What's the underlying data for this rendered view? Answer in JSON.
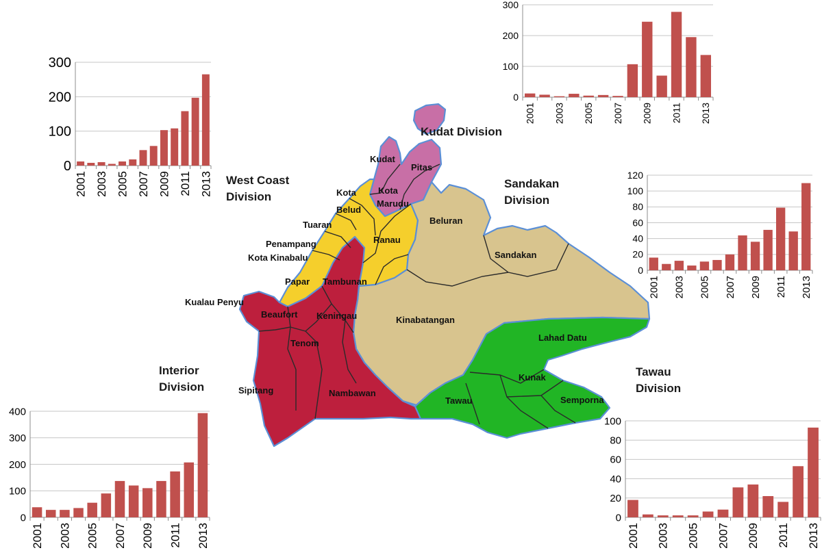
{
  "colors": {
    "bar": "#c0504d",
    "grid": "#c6c6c6",
    "west_coast": "#f5cf2c",
    "kudat": "#c86fa6",
    "sandakan": "#d8c48e",
    "interior": "#bd1f3d",
    "tawau": "#21b525",
    "coast": "#5b8fd6",
    "border": "#2a2a2a"
  },
  "map": {
    "division_labels": {
      "kudat": "Kudat Division",
      "west_coast": [
        "West Coast",
        "Division"
      ],
      "sandakan": [
        "Sandakan",
        "Division"
      ],
      "interior": [
        "Interior",
        "Division"
      ],
      "tawau": [
        "Tawau",
        "Division"
      ]
    },
    "districts": [
      "Kudat",
      "Pitas",
      "Kota",
      "Marudu",
      "Kota",
      "Belud",
      "Tuaran",
      "Ranau",
      "Beluran",
      "Penampang",
      "Kota Kinabalu",
      "Sandakan",
      "Papar",
      "Tambunan",
      "Kualau Penyu",
      "Beaufort",
      "Keningau",
      "Kinabatangan",
      "Lahad Datu",
      "Tenom",
      "Kunak",
      "Sipitang",
      "Nambawan",
      "Tawau",
      "Semporna"
    ]
  },
  "chart_data": [
    {
      "type": "bar",
      "division": "West Coast Division",
      "x": [
        2001,
        2002,
        2003,
        2004,
        2005,
        2006,
        2007,
        2008,
        2009,
        2010,
        2011,
        2012,
        2013
      ],
      "values": [
        12,
        8,
        10,
        5,
        12,
        18,
        45,
        57,
        103,
        108,
        158,
        197,
        265
      ],
      "ylim": [
        0,
        300
      ],
      "yticks": [
        0,
        100,
        200,
        300
      ],
      "xticks": [
        2001,
        2003,
        2005,
        2007,
        2009,
        2011,
        2013
      ],
      "grid": true,
      "legend": "none"
    },
    {
      "type": "bar",
      "division": "Kudat Division",
      "x": [
        2001,
        2002,
        2003,
        2004,
        2005,
        2006,
        2007,
        2008,
        2009,
        2010,
        2011,
        2012,
        2013
      ],
      "values": [
        12,
        8,
        3,
        11,
        5,
        7,
        4,
        107,
        245,
        70,
        277,
        195,
        137
      ],
      "ylim": [
        0,
        300
      ],
      "yticks": [
        0,
        100,
        200,
        300
      ],
      "xticks": [
        2001,
        2003,
        2005,
        2007,
        2009,
        2011,
        2013
      ],
      "grid": true,
      "legend": "none"
    },
    {
      "type": "bar",
      "division": "Sandakan Division",
      "x": [
        2001,
        2002,
        2003,
        2004,
        2005,
        2006,
        2007,
        2008,
        2009,
        2010,
        2011,
        2012,
        2013
      ],
      "values": [
        16,
        8,
        12,
        6,
        11,
        13,
        20,
        44,
        36,
        51,
        79,
        49,
        110
      ],
      "ylim": [
        0,
        120
      ],
      "yticks": [
        0,
        20,
        40,
        60,
        80,
        100,
        120
      ],
      "xticks": [
        2001,
        2003,
        2005,
        2007,
        2009,
        2011,
        2013
      ],
      "grid": true,
      "legend": "none"
    },
    {
      "type": "bar",
      "division": "Interior Division",
      "x": [
        2001,
        2002,
        2003,
        2004,
        2005,
        2006,
        2007,
        2008,
        2009,
        2010,
        2011,
        2012,
        2013
      ],
      "values": [
        38,
        28,
        28,
        35,
        55,
        90,
        137,
        120,
        110,
        137,
        173,
        207,
        393
      ],
      "ylim": [
        0,
        400
      ],
      "yticks": [
        0,
        100,
        200,
        300,
        400
      ],
      "xticks": [
        2001,
        2003,
        2005,
        2007,
        2009,
        2011,
        2013
      ],
      "grid": true,
      "legend": "none"
    },
    {
      "type": "bar",
      "division": "Tawau Division",
      "x": [
        2001,
        2002,
        2003,
        2004,
        2005,
        2006,
        2007,
        2008,
        2009,
        2010,
        2011,
        2012,
        2013
      ],
      "values": [
        18,
        3,
        2,
        2,
        2,
        6,
        8,
        31,
        34,
        22,
        16,
        53,
        93
      ],
      "ylim": [
        0,
        100
      ],
      "yticks": [
        0,
        20,
        40,
        60,
        80,
        100
      ],
      "xticks": [
        2001,
        2003,
        2005,
        2007,
        2009,
        2011,
        2013
      ],
      "grid": true,
      "legend": "none"
    }
  ]
}
